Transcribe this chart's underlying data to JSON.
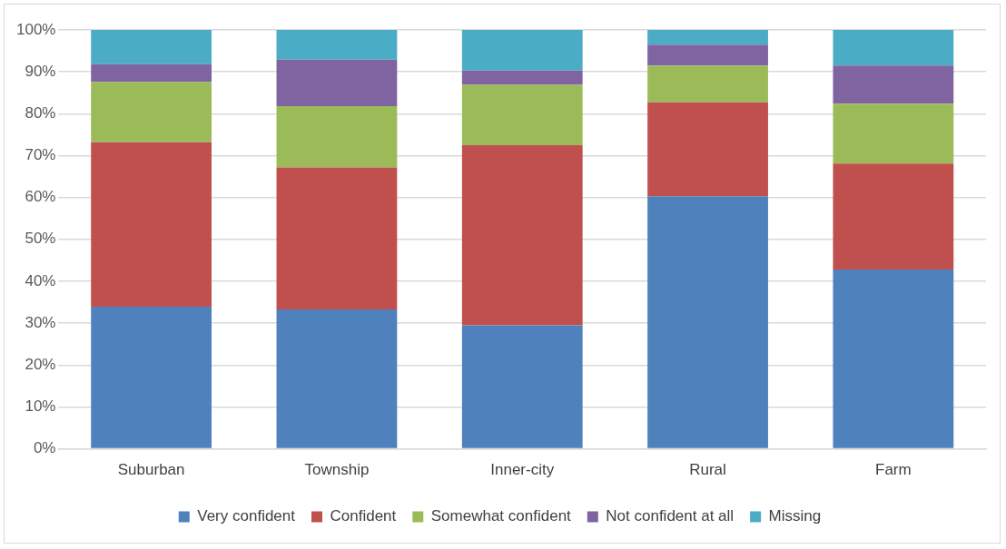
{
  "chart_data": {
    "type": "bar",
    "stacked": true,
    "categories": [
      "Suburban",
      "Township",
      "Inner-city",
      "Rural",
      "Farm"
    ],
    "series": [
      {
        "name": "Very confident",
        "color": "#4f81bd",
        "values": [
          33.9,
          33.3,
          29.5,
          60.3,
          42.8
        ]
      },
      {
        "name": "Confident",
        "color": "#c0504d",
        "values": [
          39.3,
          33.9,
          43.0,
          22.4,
          25.3
        ]
      },
      {
        "name": "Somewhat confident",
        "color": "#9bbb59",
        "values": [
          14.4,
          14.6,
          14.4,
          8.8,
          14.3
        ]
      },
      {
        "name": "Not confident at all",
        "color": "#8064a2",
        "values": [
          4.2,
          11.1,
          3.4,
          5.0,
          9.1
        ]
      },
      {
        "name": "Missing",
        "color": "#4bacc6",
        "values": [
          8.2,
          7.1,
          9.7,
          3.5,
          8.5
        ]
      }
    ],
    "ylim": [
      0,
      100
    ],
    "yticks": [
      {
        "value": 0,
        "label": "0%"
      },
      {
        "value": 10,
        "label": "10%"
      },
      {
        "value": 20,
        "label": "20%"
      },
      {
        "value": 30,
        "label": "30%"
      },
      {
        "value": 40,
        "label": "40%"
      },
      {
        "value": 50,
        "label": "50%"
      },
      {
        "value": 60,
        "label": "60%"
      },
      {
        "value": 70,
        "label": "70%"
      },
      {
        "value": 80,
        "label": "80%"
      },
      {
        "value": 90,
        "label": "90%"
      },
      {
        "value": 100,
        "label": "100%"
      }
    ],
    "grid": "y",
    "legend": "bottom"
  }
}
